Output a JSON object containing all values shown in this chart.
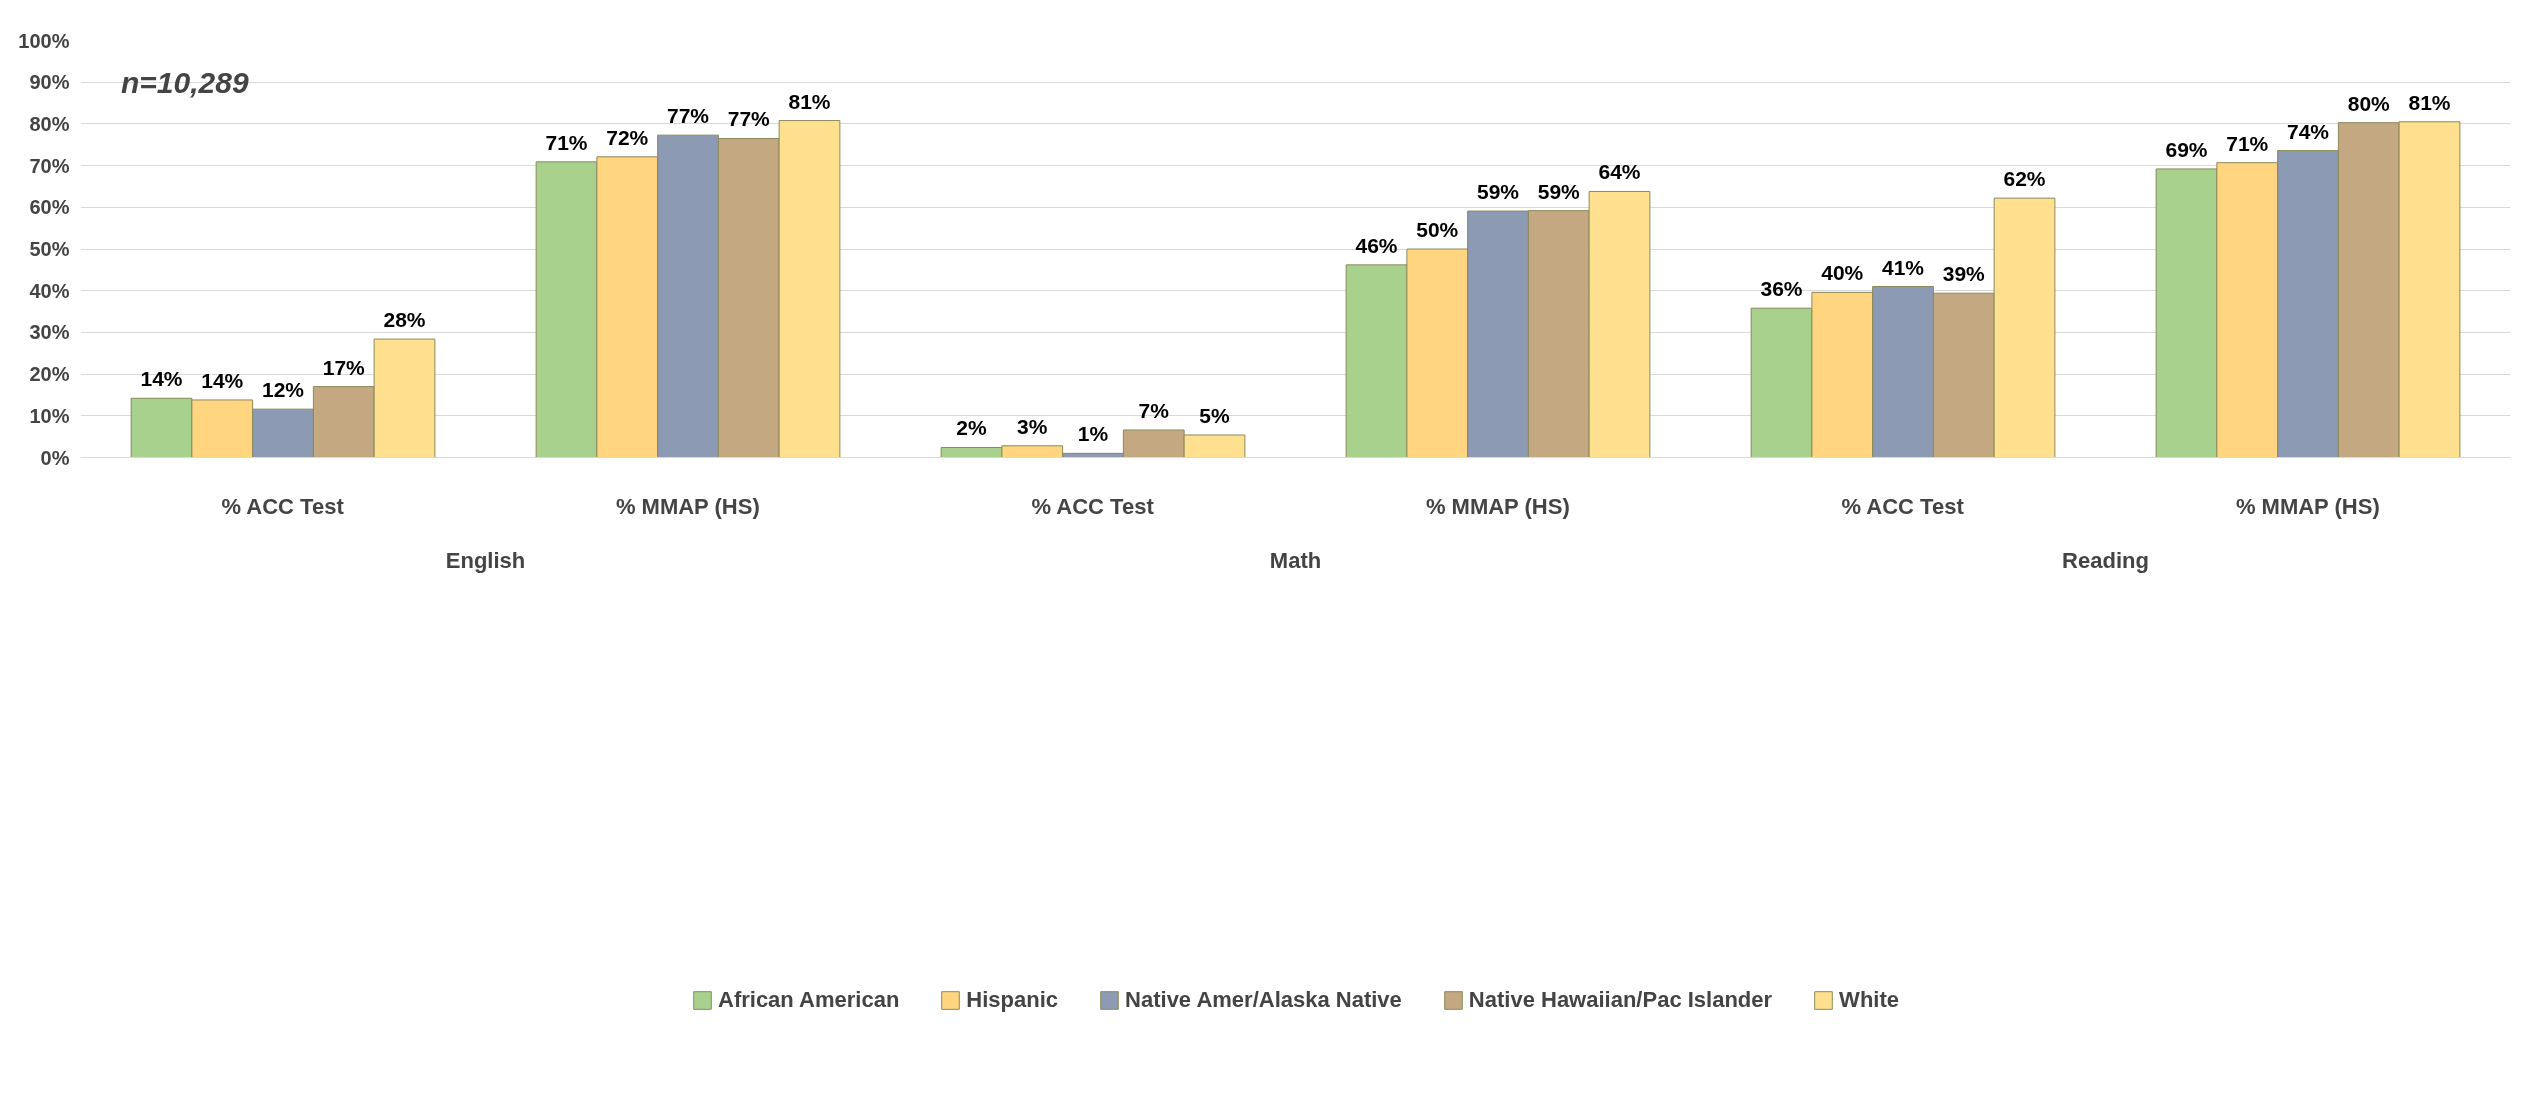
{
  "chart_data": {
    "type": "bar",
    "categories": [
      "% ACC Test",
      "% MMAP (HS)",
      "% ACC Test",
      "% MMAP (HS)",
      "% ACC Test",
      "% MMAP (HS)"
    ],
    "series": [
      {
        "name": "African American",
        "color": "#a9d18e",
        "values": [
          14.2,
          70.9,
          2.4,
          46.2,
          35.8,
          69.2
        ],
        "value_labels": [
          "14%",
          "71%",
          "2%",
          "46%",
          "36%",
          "69%"
        ]
      },
      {
        "name": "Hispanic",
        "color": "#ffd57f",
        "values": [
          13.8,
          72.1,
          2.8,
          50.0,
          39.6,
          70.7
        ],
        "value_labels": [
          "14%",
          "72%",
          "3%",
          "50%",
          "40%",
          "71%"
        ]
      },
      {
        "name": "Native Amer/Alaska Native",
        "color": "#8c9ab4",
        "values": [
          11.6,
          77.3,
          1.0,
          59.1,
          41.0,
          73.6
        ],
        "value_labels": [
          "12%",
          "77%",
          "1%",
          "59%",
          "41%",
          "74%"
        ]
      },
      {
        "name": "Native Hawaiian/Pac Islander",
        "color": "#c4a882",
        "values": [
          17.0,
          76.5,
          6.6,
          59.2,
          39.4,
          80.3
        ],
        "value_labels": [
          "17%",
          "77%",
          "7%",
          "59%",
          "39%",
          "80%"
        ]
      },
      {
        "name": "White",
        "color": "#ffe08f",
        "values": [
          28.4,
          80.8,
          5.4,
          63.8,
          62.2,
          80.5
        ],
        "value_labels": [
          "28%",
          "81%",
          "5%",
          "64%",
          "62%",
          "81%"
        ]
      }
    ],
    "ylim": [
      0,
      100
    ],
    "yticks": [
      {
        "value": 0,
        "label": "0%"
      },
      {
        "value": 10,
        "label": "10%"
      },
      {
        "value": 20,
        "label": "20%"
      },
      {
        "value": 30,
        "label": "30%"
      },
      {
        "value": 40,
        "label": "40%"
      },
      {
        "value": 50,
        "label": "50%"
      },
      {
        "value": 60,
        "label": "60%"
      },
      {
        "value": 70,
        "label": "70%"
      },
      {
        "value": 80,
        "label": "80%"
      },
      {
        "value": 90,
        "label": "90%"
      },
      {
        "value": 100,
        "label": "100%"
      }
    ],
    "annotations": [
      "n=10,289",
      "English",
      "Math",
      "Reading"
    ],
    "grid": "y",
    "legend": "bottom"
  }
}
